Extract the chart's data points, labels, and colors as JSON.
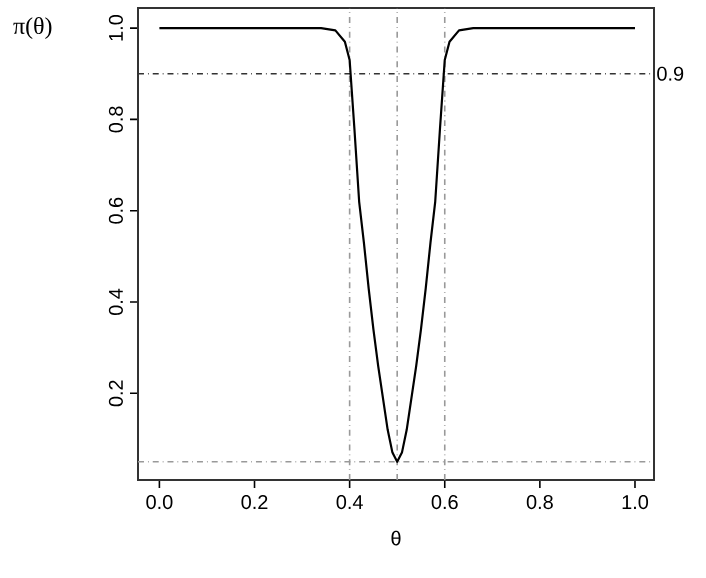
{
  "chart_data": {
    "type": "line",
    "xlabel": "θ",
    "ylabel": "π(θ)",
    "x": [
      0,
      0.1,
      0.2,
      0.3,
      0.34,
      0.37,
      0.39,
      0.4,
      0.41,
      0.42,
      0.43,
      0.44,
      0.45,
      0.46,
      0.47,
      0.48,
      0.49,
      0.5,
      0.51,
      0.52,
      0.53,
      0.54,
      0.55,
      0.56,
      0.57,
      0.58,
      0.59,
      0.6,
      0.61,
      0.63,
      0.66,
      0.7,
      0.8,
      0.9,
      1.0
    ],
    "series": [
      {
        "color": "#000000",
        "values": [
          1,
          1,
          1,
          1,
          1,
          0.995,
          0.97,
          0.93,
          0.78,
          0.62,
          0.53,
          0.43,
          0.34,
          0.26,
          0.19,
          0.12,
          0.07,
          0.05,
          0.07,
          0.12,
          0.19,
          0.26,
          0.34,
          0.43,
          0.53,
          0.62,
          0.78,
          0.93,
          0.97,
          0.995,
          1,
          1,
          1,
          1,
          1
        ]
      }
    ],
    "xlim": [
      -0.045,
      1.04
    ],
    "ylim": [
      0.01,
      1.044
    ],
    "xticks": [
      {
        "value": 0,
        "label": "0.0"
      },
      0.2,
      0.4,
      0.6,
      0.8,
      {
        "value": 1,
        "label": "1.0"
      }
    ],
    "yticks": [
      0.2,
      0.4,
      0.6,
      0.8,
      {
        "value": 1,
        "label": "1.0"
      }
    ],
    "ref_lines": [
      {
        "axis": "x",
        "value": 0.4,
        "color": "#999999",
        "line_style": "dashdot"
      },
      {
        "axis": "x",
        "value": 0.5,
        "color": "#999999",
        "line_style": "dashdot"
      },
      {
        "axis": "x",
        "value": 0.6,
        "color": "#999999",
        "line_style": "dashdot"
      },
      {
        "axis": "y",
        "value": 0.9,
        "color": "#333333",
        "line_style": "dashdot",
        "label": "0.9"
      },
      {
        "axis": "y",
        "value": 0.05,
        "color": "#999999",
        "line_style": "dashdot"
      }
    ],
    "grid": false,
    "marker": "none",
    "line_style": "solid"
  }
}
